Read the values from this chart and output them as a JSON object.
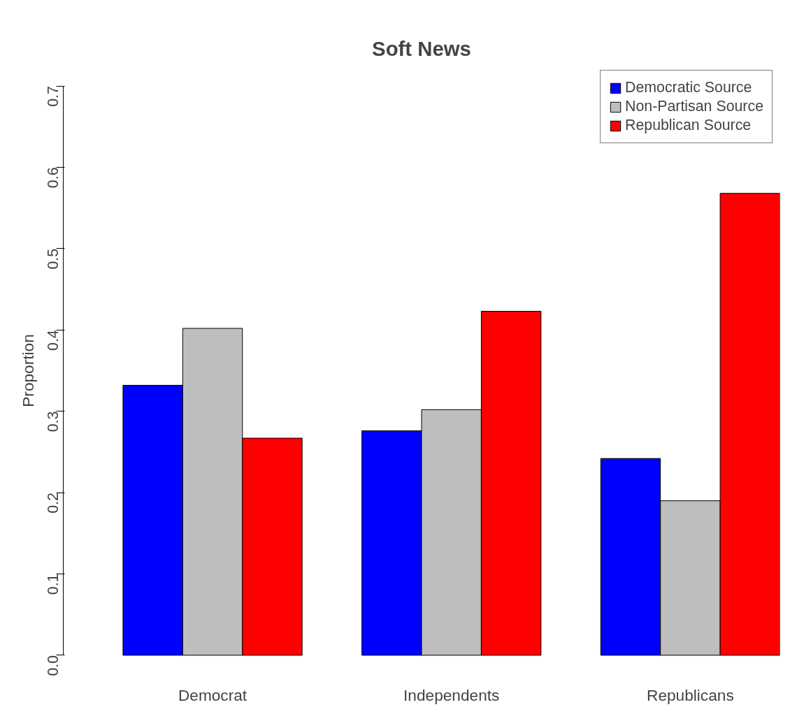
{
  "chart_data": {
    "type": "bar",
    "title": "Soft News",
    "ylabel": "Proportion",
    "categories": [
      "Democrat",
      "Independents",
      "Republicans"
    ],
    "series": [
      {
        "name": "Democratic Source",
        "color": "#0000ff",
        "values": [
          0.332,
          0.276,
          0.242
        ]
      },
      {
        "name": "Non-Partisan Source",
        "color": "#bebebe",
        "values": [
          0.402,
          0.302,
          0.19
        ]
      },
      {
        "name": "Republican Source",
        "color": "#ff0000",
        "values": [
          0.267,
          0.423,
          0.568
        ]
      }
    ],
    "ylim": [
      0,
      0.7
    ],
    "yticks": [
      {
        "value": 0,
        "label": "0.0"
      },
      0.1,
      0.2,
      0.3,
      0.4,
      0.5,
      0.6,
      0.7
    ],
    "grid": false,
    "legend": "top right"
  }
}
